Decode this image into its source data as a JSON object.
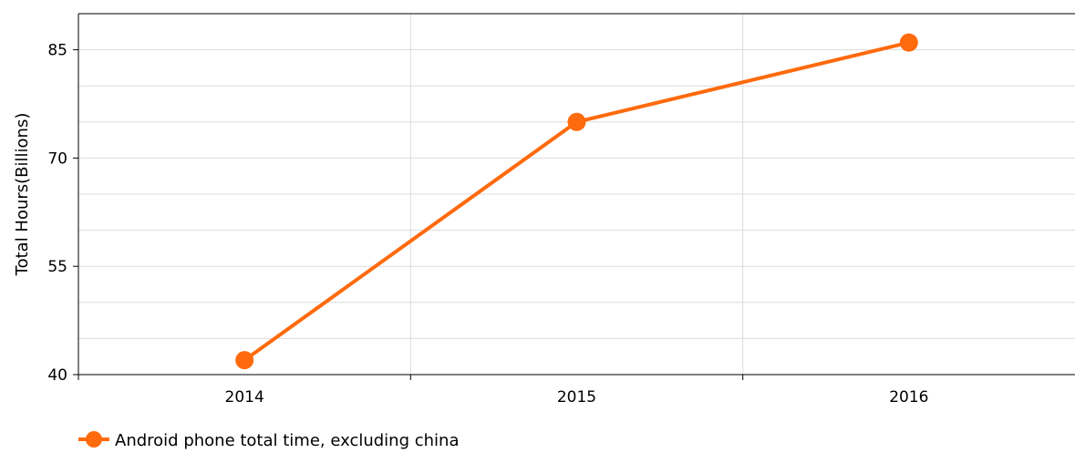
{
  "chart_data": {
    "type": "line",
    "title": "",
    "xlabel": "",
    "ylabel": "Total Hours(Billions)",
    "categories": [
      "2014",
      "2015",
      "2016"
    ],
    "series": [
      {
        "name": "Android phone total time, excluding china",
        "values": [
          42,
          75,
          86
        ],
        "color": "#ff6a0d"
      }
    ],
    "ylim": [
      40,
      90
    ],
    "yticks": [
      40,
      55,
      70,
      85
    ],
    "minor_ytick_step": 5,
    "grid": true,
    "legend_position": "bottom-left",
    "marker": "circle"
  },
  "colors": {
    "series": "#ff6a0d",
    "grid": "#dcdcdc",
    "axis": "#000000"
  }
}
